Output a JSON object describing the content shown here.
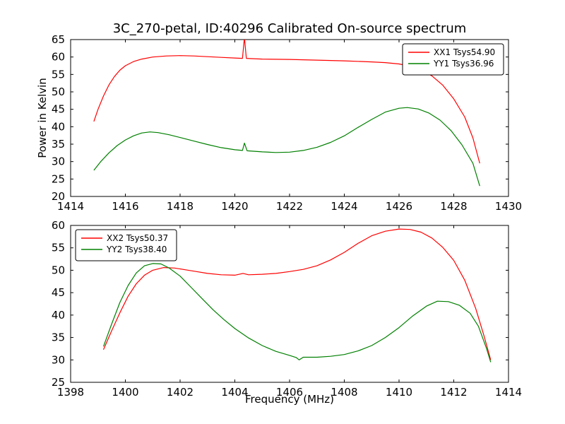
{
  "chart_data": [
    {
      "type": "line",
      "title": "3C_270-petal, ID:40296 Calibrated On-source spectrum",
      "xlabel": "",
      "ylabel": "Power in Kelvin",
      "xlim": [
        1414,
        1430
      ],
      "ylim": [
        20,
        65
      ],
      "xticks": [
        1414,
        1416,
        1418,
        1420,
        1422,
        1424,
        1426,
        1428,
        1430
      ],
      "yticks": [
        20,
        25,
        30,
        35,
        40,
        45,
        50,
        55,
        60,
        65
      ],
      "grid": false,
      "legend_position": "top-right",
      "series": [
        {
          "name": "XX1 Tsys54.90",
          "color": "#ff0000",
          "points": [
            [
              1414.85,
              41.5
            ],
            [
              1415.0,
              45.0
            ],
            [
              1415.2,
              48.8
            ],
            [
              1415.4,
              52.0
            ],
            [
              1415.6,
              54.4
            ],
            [
              1415.8,
              56.2
            ],
            [
              1416.0,
              57.5
            ],
            [
              1416.3,
              58.7
            ],
            [
              1416.6,
              59.4
            ],
            [
              1417.0,
              60.0
            ],
            [
              1417.5,
              60.3
            ],
            [
              1418.0,
              60.4
            ],
            [
              1418.5,
              60.3
            ],
            [
              1419.0,
              60.1
            ],
            [
              1419.5,
              59.9
            ],
            [
              1420.0,
              59.7
            ],
            [
              1420.28,
              59.6
            ],
            [
              1420.35,
              65.6
            ],
            [
              1420.42,
              59.6
            ],
            [
              1421.0,
              59.4
            ],
            [
              1422.0,
              59.3
            ],
            [
              1423.0,
              59.1
            ],
            [
              1424.0,
              58.9
            ],
            [
              1425.0,
              58.6
            ],
            [
              1425.5,
              58.4
            ],
            [
              1426.0,
              58.0
            ],
            [
              1426.4,
              57.4
            ],
            [
              1426.8,
              56.3
            ],
            [
              1427.2,
              54.6
            ],
            [
              1427.6,
              51.9
            ],
            [
              1428.0,
              48.0
            ],
            [
              1428.4,
              42.8
            ],
            [
              1428.7,
              36.8
            ],
            [
              1428.95,
              29.5
            ]
          ]
        },
        {
          "name": "YY1 Tsys36.96",
          "color": "#008000",
          "points": [
            [
              1414.85,
              27.5
            ],
            [
              1415.1,
              30.0
            ],
            [
              1415.4,
              32.5
            ],
            [
              1415.7,
              34.6
            ],
            [
              1416.0,
              36.2
            ],
            [
              1416.3,
              37.4
            ],
            [
              1416.6,
              38.2
            ],
            [
              1416.9,
              38.5
            ],
            [
              1417.2,
              38.3
            ],
            [
              1417.6,
              37.7
            ],
            [
              1418.0,
              36.9
            ],
            [
              1418.5,
              35.9
            ],
            [
              1419.0,
              34.9
            ],
            [
              1419.5,
              34.0
            ],
            [
              1420.0,
              33.4
            ],
            [
              1420.28,
              33.2
            ],
            [
              1420.35,
              35.3
            ],
            [
              1420.45,
              33.1
            ],
            [
              1421.0,
              32.8
            ],
            [
              1421.5,
              32.6
            ],
            [
              1422.0,
              32.7
            ],
            [
              1422.5,
              33.2
            ],
            [
              1423.0,
              34.1
            ],
            [
              1423.5,
              35.5
            ],
            [
              1424.0,
              37.4
            ],
            [
              1424.5,
              39.8
            ],
            [
              1425.0,
              42.1
            ],
            [
              1425.5,
              44.2
            ],
            [
              1426.0,
              45.3
            ],
            [
              1426.3,
              45.5
            ],
            [
              1426.7,
              45.1
            ],
            [
              1427.1,
              43.9
            ],
            [
              1427.5,
              41.9
            ],
            [
              1427.9,
              38.9
            ],
            [
              1428.3,
              34.8
            ],
            [
              1428.7,
              29.5
            ],
            [
              1428.95,
              23.0
            ]
          ]
        }
      ]
    },
    {
      "type": "line",
      "title": "",
      "xlabel": "Frequency (MHz)",
      "ylabel": "",
      "xlim": [
        1398,
        1414
      ],
      "ylim": [
        25,
        60
      ],
      "xticks": [
        1398,
        1400,
        1402,
        1404,
        1406,
        1408,
        1410,
        1412,
        1414
      ],
      "yticks": [
        25,
        30,
        35,
        40,
        45,
        50,
        55,
        60
      ],
      "grid": false,
      "legend_position": "top-left",
      "series": [
        {
          "name": "XX2 Tsys50.37",
          "color": "#ff0000",
          "points": [
            [
              1399.2,
              32.3
            ],
            [
              1399.5,
              36.5
            ],
            [
              1399.8,
              40.5
            ],
            [
              1400.1,
              44.2
            ],
            [
              1400.4,
              47.0
            ],
            [
              1400.7,
              48.9
            ],
            [
              1401.0,
              50.0
            ],
            [
              1401.4,
              50.6
            ],
            [
              1401.8,
              50.5
            ],
            [
              1402.2,
              50.1
            ],
            [
              1402.6,
              49.7
            ],
            [
              1403.0,
              49.3
            ],
            [
              1403.5,
              49.0
            ],
            [
              1404.0,
              48.9
            ],
            [
              1404.3,
              49.3
            ],
            [
              1404.5,
              49.0
            ],
            [
              1405.0,
              49.1
            ],
            [
              1405.5,
              49.3
            ],
            [
              1406.0,
              49.7
            ],
            [
              1406.5,
              50.2
            ],
            [
              1407.0,
              51.0
            ],
            [
              1407.5,
              52.3
            ],
            [
              1408.0,
              54.0
            ],
            [
              1408.5,
              56.0
            ],
            [
              1409.0,
              57.7
            ],
            [
              1409.5,
              58.7
            ],
            [
              1410.0,
              59.2
            ],
            [
              1410.4,
              59.1
            ],
            [
              1410.8,
              58.5
            ],
            [
              1411.2,
              57.2
            ],
            [
              1411.6,
              55.1
            ],
            [
              1412.0,
              52.2
            ],
            [
              1412.4,
              47.8
            ],
            [
              1412.8,
              41.5
            ],
            [
              1413.1,
              35.5
            ],
            [
              1413.35,
              30.0
            ]
          ]
        },
        {
          "name": "YY2 Tsys38.40",
          "color": "#008000",
          "points": [
            [
              1399.2,
              33.0
            ],
            [
              1399.5,
              38.0
            ],
            [
              1399.8,
              42.8
            ],
            [
              1400.1,
              46.6
            ],
            [
              1400.4,
              49.4
            ],
            [
              1400.7,
              51.0
            ],
            [
              1401.0,
              51.5
            ],
            [
              1401.3,
              51.4
            ],
            [
              1401.6,
              50.5
            ],
            [
              1402.0,
              48.7
            ],
            [
              1402.4,
              46.2
            ],
            [
              1402.8,
              43.7
            ],
            [
              1403.2,
              41.2
            ],
            [
              1403.6,
              39.0
            ],
            [
              1404.0,
              37.0
            ],
            [
              1404.5,
              34.9
            ],
            [
              1405.0,
              33.2
            ],
            [
              1405.5,
              31.9
            ],
            [
              1406.0,
              31.0
            ],
            [
              1406.25,
              30.5
            ],
            [
              1406.35,
              30.0
            ],
            [
              1406.5,
              30.6
            ],
            [
              1407.0,
              30.6
            ],
            [
              1407.5,
              30.8
            ],
            [
              1408.0,
              31.2
            ],
            [
              1408.5,
              32.0
            ],
            [
              1409.0,
              33.2
            ],
            [
              1409.5,
              35.0
            ],
            [
              1410.0,
              37.2
            ],
            [
              1410.5,
              39.8
            ],
            [
              1411.0,
              42.0
            ],
            [
              1411.4,
              43.1
            ],
            [
              1411.8,
              43.0
            ],
            [
              1412.2,
              42.2
            ],
            [
              1412.6,
              40.4
            ],
            [
              1412.9,
              37.5
            ],
            [
              1413.2,
              32.5
            ],
            [
              1413.35,
              29.5
            ]
          ]
        }
      ]
    }
  ]
}
